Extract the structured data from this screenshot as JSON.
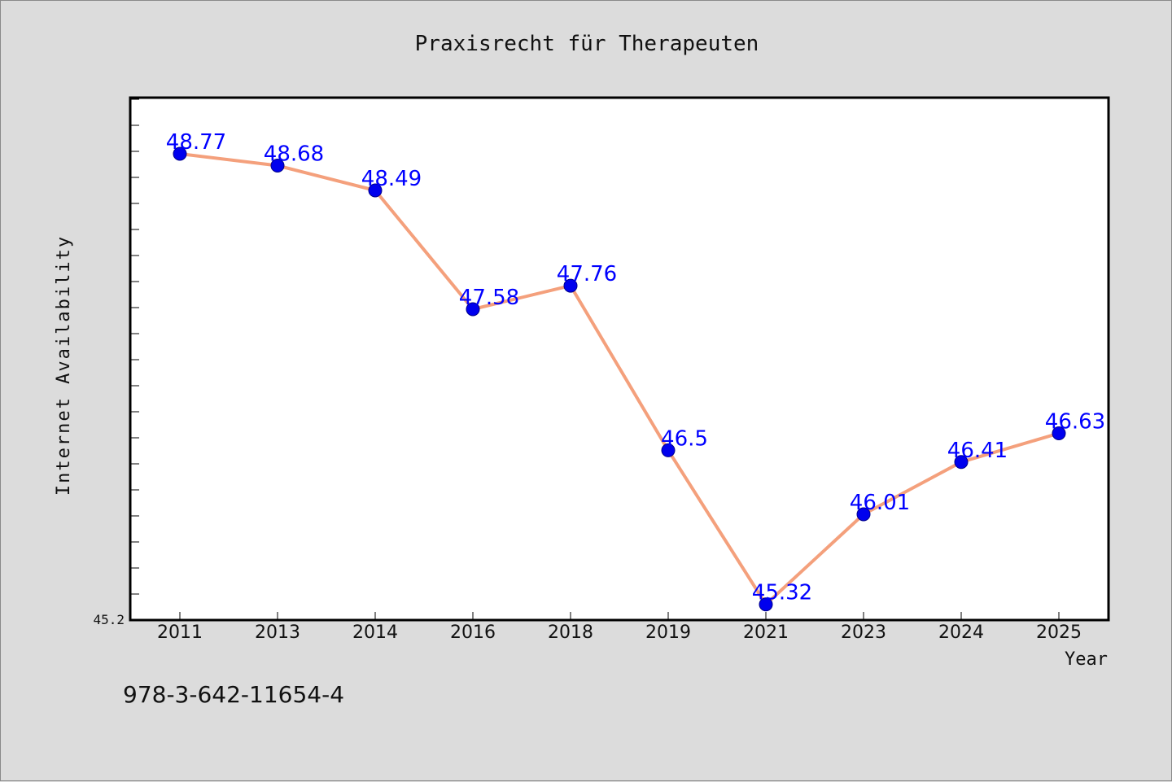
{
  "chart_data": {
    "type": "line",
    "title": "Praxisrecht für Therapeuten",
    "xlabel": "Year",
    "ylabel": "Internet Availability",
    "categories": [
      "2011",
      "2013",
      "2014",
      "2016",
      "2018",
      "2019",
      "2021",
      "2023",
      "2024",
      "2025"
    ],
    "series": [
      {
        "values": [
          48.77,
          48.68,
          48.49,
          47.58,
          47.76,
          46.5,
          45.32,
          46.01,
          46.41,
          46.63
        ],
        "labels": [
          "48.77",
          "48.68",
          "48.49",
          "47.58",
          "47.76",
          "46.5",
          "45.32",
          "46.01",
          "46.41",
          "46.63"
        ],
        "line_color": "#f4a07c",
        "marker_color": "#0000ee",
        "label_color": "#0000ff"
      }
    ],
    "ylim": [
      45.2,
      49.2
    ],
    "y_tick_labels": [
      "45.2"
    ],
    "grid": false,
    "legend": "none"
  },
  "footer": {
    "isbn": "978-3-642-11654-4"
  },
  "colors": {
    "background": "#dcdcdc",
    "plot_background": "#ffffff",
    "axis": "#000000"
  }
}
